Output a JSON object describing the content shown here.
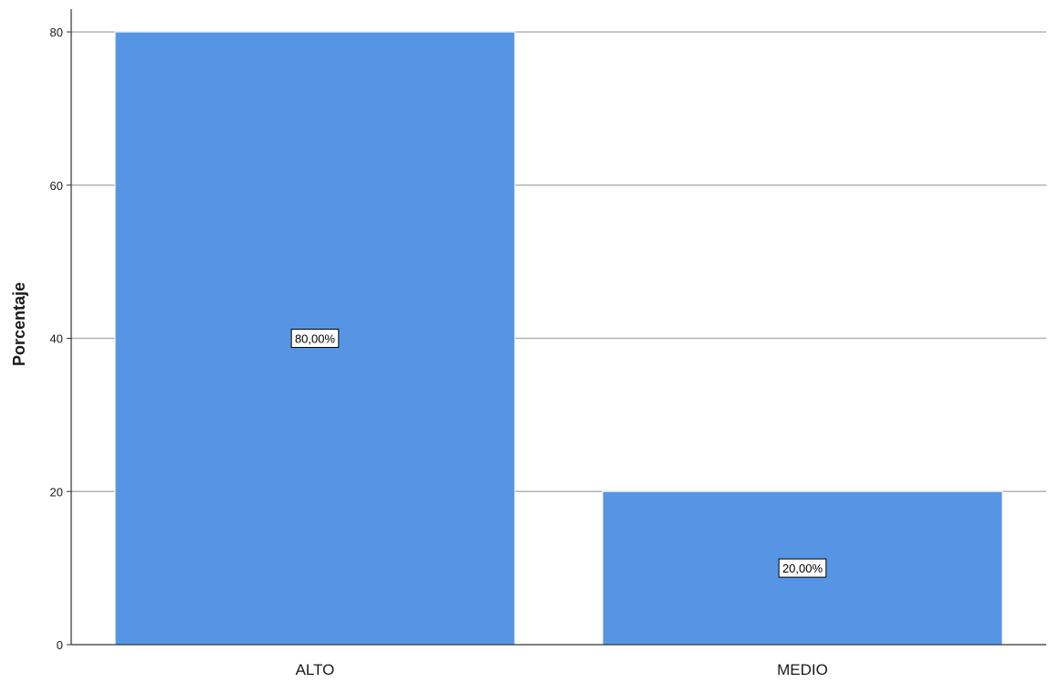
{
  "chart_data": {
    "type": "bar",
    "categories": [
      "ALTO",
      "MEDIO"
    ],
    "values": [
      80,
      20
    ],
    "data_labels": [
      "80,00%",
      "20,00%"
    ],
    "ylabel": "Porcentaje",
    "xlabel": "",
    "ylim": [
      0,
      80
    ],
    "yticks": [
      0,
      20,
      40,
      60,
      80
    ],
    "grid": true,
    "bar_color": "#5595e4"
  }
}
